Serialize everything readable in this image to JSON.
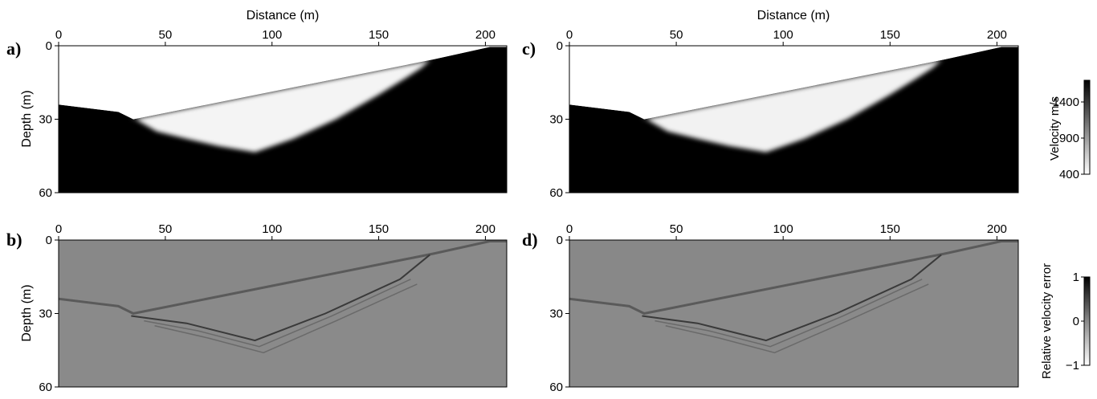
{
  "chart_data": [
    {
      "type": "heatmap",
      "panel_label": "a)",
      "xlabel": "Distance (m)",
      "ylabel": "Depth (m)",
      "xlim": [
        0,
        210
      ],
      "ylim": [
        0,
        60
      ],
      "xticks": [
        0,
        50,
        100,
        150,
        200
      ],
      "yticks": [
        0,
        30,
        60
      ],
      "colormap": "velocity",
      "surface_profile": {
        "x": [
          0,
          28,
          35,
          176,
          202,
          210
        ],
        "depth": [
          24,
          27,
          30,
          5.5,
          0.5,
          0.5
        ]
      },
      "low_velocity_zone": {
        "x": [
          34,
          40,
          46,
          60,
          75,
          92,
          110,
          130,
          150,
          163,
          170,
          174
        ],
        "depth": [
          29,
          32,
          35,
          38,
          41,
          43.5,
          38,
          30,
          20,
          13,
          9,
          6
        ]
      },
      "colors": {
        "background": "#000000",
        "low_velocity": "#f4f4f4"
      }
    },
    {
      "type": "heatmap",
      "panel_label": "b)",
      "ylabel": "Depth (m)",
      "xlim": [
        0,
        210
      ],
      "ylim": [
        0,
        60
      ],
      "xticks": [
        0,
        50,
        100,
        150,
        200
      ],
      "yticks": [
        0,
        30,
        60
      ],
      "colormap": "relative_error",
      "surface_profile": {
        "x": [
          0,
          28,
          35,
          176,
          202,
          210
        ],
        "depth": [
          24,
          27,
          30,
          5.5,
          0.5,
          0.5
        ]
      },
      "error_lines": [
        {
          "x": [
            34,
            60,
            92,
            125,
            160,
            174
          ],
          "depth": [
            31,
            34,
            41,
            30,
            16,
            6
          ]
        },
        {
          "x": [
            40,
            65,
            94,
            128,
            165
          ],
          "depth": [
            33,
            37,
            43.5,
            31,
            16
          ]
        },
        {
          "x": [
            45,
            70,
            96,
            130,
            168
          ],
          "depth": [
            35,
            40,
            46,
            33,
            18
          ]
        }
      ],
      "colors": {
        "background": "#8a8a8a",
        "above_surface": "#888888"
      }
    },
    {
      "type": "heatmap",
      "panel_label": "c)",
      "xlabel": "Distance (m)",
      "xlim": [
        0,
        210
      ],
      "ylim": [
        0,
        60
      ],
      "xticks": [
        0,
        50,
        100,
        150,
        200
      ],
      "yticks": [
        0,
        30,
        60
      ],
      "colormap": "velocity",
      "surface_profile": {
        "x": [
          0,
          28,
          35,
          176,
          202,
          210
        ],
        "depth": [
          24,
          27,
          30,
          5.5,
          0.5,
          0.5
        ]
      },
      "low_velocity_zone": {
        "x": [
          34,
          40,
          46,
          60,
          75,
          92,
          110,
          130,
          150,
          163,
          170,
          174
        ],
        "depth": [
          29,
          32,
          35,
          38,
          41,
          43.5,
          38,
          30,
          20,
          13,
          9,
          6
        ]
      },
      "colors": {
        "background": "#000000",
        "low_velocity": "#f2f2f2"
      }
    },
    {
      "type": "heatmap",
      "panel_label": "d)",
      "xlim": [
        0,
        210
      ],
      "ylim": [
        0,
        60
      ],
      "xticks": [
        0,
        50,
        100,
        150,
        200
      ],
      "yticks": [
        0,
        30,
        60
      ],
      "colormap": "relative_error",
      "surface_profile": {
        "x": [
          0,
          28,
          35,
          176,
          202,
          210
        ],
        "depth": [
          24,
          27,
          30,
          5.5,
          0.5,
          0.5
        ]
      },
      "error_lines": [
        {
          "x": [
            34,
            60,
            92,
            125,
            160,
            174
          ],
          "depth": [
            31,
            34,
            41,
            30,
            16,
            6
          ]
        },
        {
          "x": [
            40,
            65,
            94,
            128,
            165
          ],
          "depth": [
            33,
            37,
            43.5,
            31,
            16
          ]
        },
        {
          "x": [
            45,
            70,
            96,
            130,
            168
          ],
          "depth": [
            35,
            40,
            46,
            33,
            18
          ]
        }
      ],
      "colors": {
        "background": "#8a8a8a",
        "above_surface": "#888888"
      }
    }
  ],
  "colorbars": [
    {
      "label": "Velocity m/s",
      "ticks": [
        1400,
        900,
        400
      ],
      "range": [
        400,
        1700
      ],
      "colors": {
        "low": "#ffffff",
        "high": "#000000"
      }
    },
    {
      "label": "Relative velocity error",
      "ticks": [
        1,
        0,
        -1
      ],
      "range": [
        -1,
        1
      ],
      "colors": {
        "low": "#ffffff",
        "high": "#000000"
      }
    }
  ]
}
